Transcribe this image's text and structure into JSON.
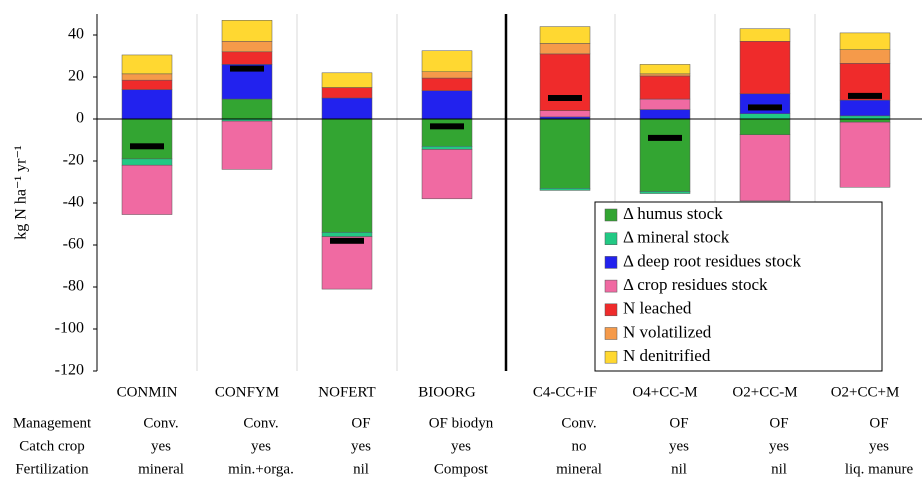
{
  "chart_data": {
    "type": "stacked-bar",
    "y_label": "kg N ha⁻¹ yr⁻¹",
    "categories": [
      "CONMIN",
      "CONFYM",
      "NOFERT",
      "BIOORG",
      "C4-CC+IF",
      "O4+CC-M",
      "O2+CC-M",
      "O2+CC+M"
    ],
    "series": [
      {
        "name": "Δ humus stock",
        "color": "#33a532",
        "values": [
          -19,
          9.5,
          -54,
          -13,
          -33,
          -34.5,
          -7.5,
          -1.5
        ]
      },
      {
        "name": "Δ mineral stock",
        "color": "#22c984",
        "values": [
          -3,
          -1,
          -2,
          -1.5,
          -1,
          -1,
          2.5,
          1.5
        ]
      },
      {
        "name": "Δ deep root residues stock",
        "color": "#2222ee",
        "values": [
          14,
          16.5,
          10,
          13.5,
          1,
          4.5,
          9.5,
          7.5
        ]
      },
      {
        "name": "Δ crop residues stock",
        "color": "#f06aa2",
        "values": [
          -23.5,
          -23,
          -25,
          -23.5,
          3,
          5,
          -31.5,
          -31
        ]
      },
      {
        "name": "N leached",
        "color": "#ef2b2b",
        "values": [
          4.5,
          6,
          5,
          6,
          27,
          11,
          25,
          17.5
        ]
      },
      {
        "name": "N volatilized",
        "color": "#f59a4a",
        "values": [
          3,
          5,
          0,
          3,
          5,
          1,
          0,
          6.5
        ]
      },
      {
        "name": "N denitrified",
        "color": "#ffd831",
        "values": [
          9,
          10,
          7,
          10,
          8,
          4.5,
          6,
          8
        ]
      }
    ],
    "balance": {
      "color": "#000000",
      "values": [
        -13,
        24,
        -58,
        -3.5,
        10,
        -9,
        5.5,
        11
      ]
    },
    "ylim": [
      -120,
      50
    ],
    "yticks": [
      -120,
      -100,
      -80,
      -60,
      -40,
      -20,
      0,
      20,
      40
    ],
    "legend": "lower right",
    "table": [
      {
        "label": "Management",
        "values": [
          "Conv.",
          "Conv.",
          "OF",
          "OF biodyn",
          "Conv.",
          "OF",
          "OF",
          "OF"
        ]
      },
      {
        "label": "Catch crop",
        "values": [
          "yes",
          "yes",
          "yes",
          "yes",
          "no",
          "yes",
          "yes",
          "yes"
        ]
      },
      {
        "label": "Fertilization",
        "values": [
          "mineral",
          "min.+orga.",
          "nil",
          "Compost",
          "mineral",
          "nil",
          "nil",
          "liq. manure"
        ]
      }
    ]
  }
}
